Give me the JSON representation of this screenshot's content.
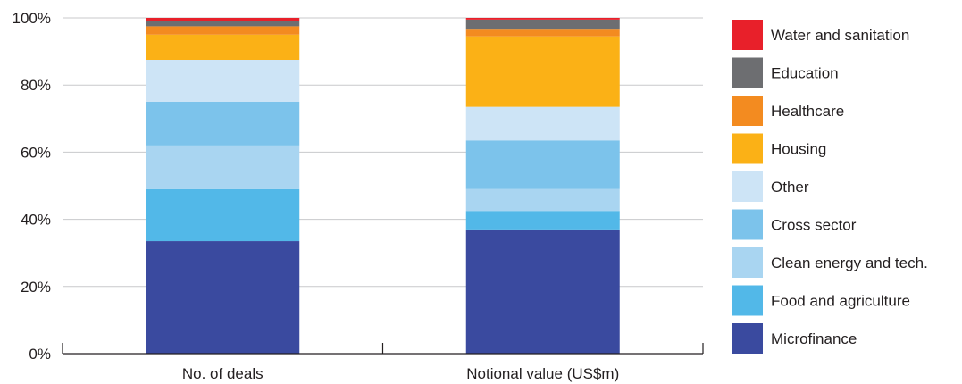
{
  "chart_data": {
    "type": "bar",
    "stacked": true,
    "categories": [
      "No. of deals",
      "Notional value (US$m)"
    ],
    "ylim": [
      0,
      100
    ],
    "yticks": [
      "0%",
      "20%",
      "40%",
      "60%",
      "80%",
      "100%"
    ],
    "ytick_values": [
      0,
      20,
      40,
      60,
      80,
      100
    ],
    "grid": true,
    "legend_position": "right",
    "series": [
      {
        "name": "Microfinance",
        "color": "#3a4a9f",
        "values": [
          33.5,
          37
        ]
      },
      {
        "name": "Food and agriculture",
        "color": "#52b8e8",
        "values": [
          15.5,
          5.5
        ]
      },
      {
        "name": "Clean energy and tech.",
        "color": "#a9d5f1",
        "values": [
          13,
          6.5
        ]
      },
      {
        "name": "Cross sector",
        "color": "#7cc3eb",
        "values": [
          13,
          14.5
        ]
      },
      {
        "name": "Other",
        "color": "#cde4f6",
        "values": [
          12.5,
          10
        ]
      },
      {
        "name": "Housing",
        "color": "#fbb116",
        "values": [
          7.5,
          21
        ]
      },
      {
        "name": "Healthcare",
        "color": "#f38b20",
        "values": [
          2.5,
          2
        ]
      },
      {
        "name": "Education",
        "color": "#6d6e71",
        "values": [
          1.5,
          3
        ]
      },
      {
        "name": "Water and sanitation",
        "color": "#e8202a",
        "values": [
          1,
          0.5
        ]
      }
    ]
  }
}
